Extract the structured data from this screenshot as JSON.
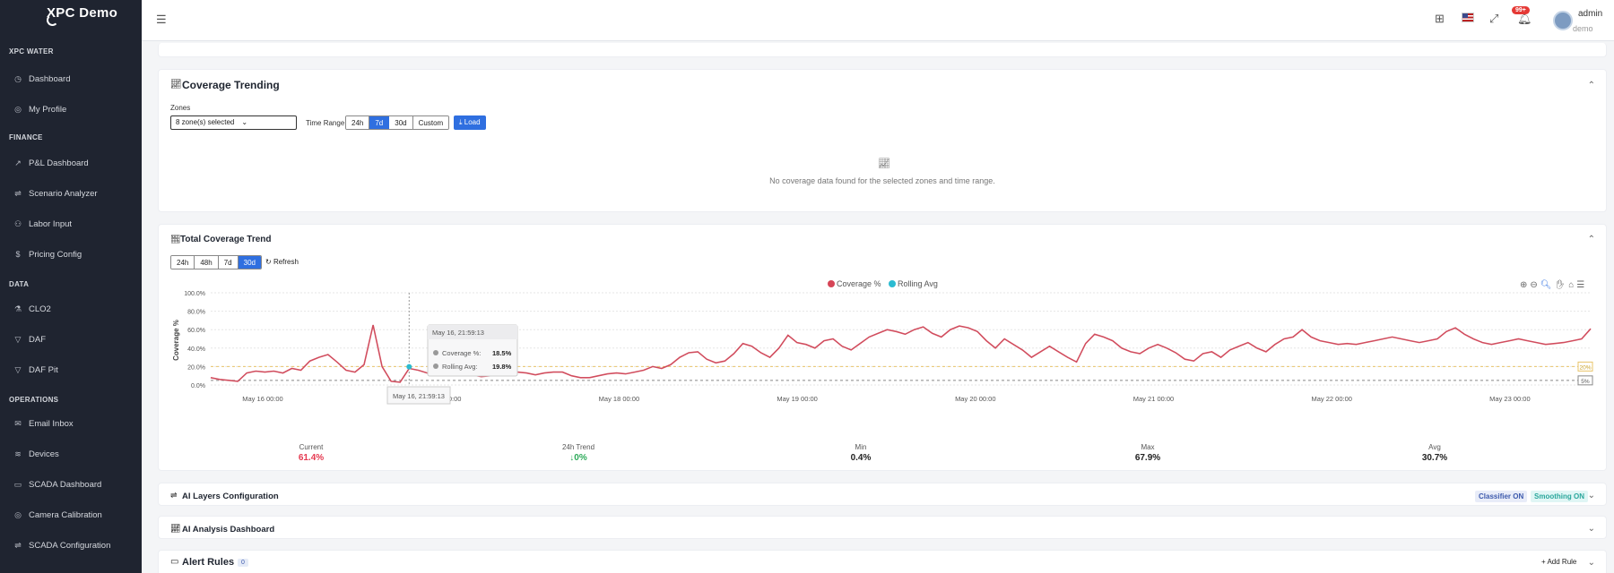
{
  "sidebar": {
    "brand": "XPC Demo",
    "sections": [
      {
        "label": "XPC WATER",
        "items": [
          {
            "label": "Dashboard",
            "icon": "gauge-icon"
          },
          {
            "label": "My Profile",
            "icon": "user-circle-icon"
          }
        ]
      },
      {
        "label": "FINANCE",
        "items": [
          {
            "label": "P&L Dashboard",
            "icon": "trend-chart-icon"
          },
          {
            "label": "Scenario Analyzer",
            "icon": "sliders-icon"
          },
          {
            "label": "Labor Input",
            "icon": "users-icon"
          },
          {
            "label": "Pricing Config",
            "icon": "dollar-icon"
          }
        ]
      },
      {
        "label": "DATA",
        "items": [
          {
            "label": "CLO2",
            "icon": "flask-icon"
          },
          {
            "label": "DAF",
            "icon": "filter-icon"
          },
          {
            "label": "DAF Pit",
            "icon": "filter-icon"
          }
        ]
      },
      {
        "label": "OPERATIONS",
        "items": [
          {
            "label": "Email Inbox",
            "icon": "mail-icon"
          },
          {
            "label": "Devices",
            "icon": "wifi-icon"
          },
          {
            "label": "SCADA Dashboard",
            "icon": "monitor-icon"
          },
          {
            "label": "Camera Calibration",
            "icon": "target-icon"
          },
          {
            "label": "SCADA Configuration",
            "icon": "sliders-icon"
          }
        ]
      }
    ]
  },
  "topbar": {
    "notifications": "99+",
    "user_name": "admin",
    "user_role": "demo"
  },
  "coverage_trending": {
    "title": "Coverage Trending",
    "zones_label": "Zones",
    "zones_value": "8 zone(s) selected",
    "time_range_label": "Time Range",
    "ranges": [
      "24h",
      "7d",
      "30d",
      "Custom"
    ],
    "active_range": "7d",
    "load_label": "Load",
    "empty_text": "No coverage data found for the selected zones and time range."
  },
  "total_trend": {
    "title": "Total Coverage Trend",
    "ranges": [
      "24h",
      "48h",
      "7d",
      "30d"
    ],
    "active_range": "30d",
    "refresh_label": "Refresh",
    "tooltip": {
      "time": "May 16, 21:59:13",
      "coverage_label": "Coverage %:",
      "coverage_value": "18.5%",
      "rolling_label": "Rolling Avg:",
      "rolling_value": "19.8%"
    },
    "crosshair_label": "May 16, 21:59:13",
    "stats": [
      {
        "label": "Current",
        "value": "61.4%",
        "color": "#e53950"
      },
      {
        "label": "24h Trend",
        "value": "↓0%",
        "color": "#2eab5a"
      },
      {
        "label": "Min",
        "value": "0.4%",
        "color": "#222222"
      },
      {
        "label": "Max",
        "value": "67.9%",
        "color": "#222222"
      },
      {
        "label": "Avg",
        "value": "30.7%",
        "color": "#222222"
      }
    ]
  },
  "chart_data": {
    "type": "line",
    "title": "",
    "ylabel": "Coverage %",
    "xlabel": "",
    "ylim": [
      0,
      100
    ],
    "y_ticks": [
      "0.0%",
      "20.0%",
      "40.0%",
      "60.0%",
      "80.0%",
      "100.0%"
    ],
    "x_ticks": [
      "May 16 00:00",
      "May 17 00:00",
      "May 18 00:00",
      "May 19 00:00",
      "May 20 00:00",
      "May 21 00:00",
      "May 22 00:00",
      "May 23 00:00"
    ],
    "legend_position": "top-center",
    "series": [
      {
        "name": "Coverage %",
        "color": "#d64556",
        "values": [
          8,
          6,
          5,
          4,
          13,
          15,
          14,
          15,
          13,
          18,
          16,
          26,
          30,
          33,
          25,
          16,
          14,
          22,
          65,
          20,
          4,
          3,
          18,
          16,
          13,
          12,
          13,
          15,
          14,
          11,
          9,
          10,
          12,
          12,
          14,
          13,
          11,
          13,
          14,
          14,
          10,
          8,
          8,
          10,
          12,
          13,
          12,
          14,
          16,
          20,
          18,
          22,
          30,
          35,
          36,
          28,
          24,
          26,
          34,
          45,
          42,
          35,
          30,
          40,
          54,
          46,
          44,
          40,
          48,
          50,
          42,
          38,
          45,
          52,
          56,
          60,
          58,
          55,
          60,
          63,
          56,
          52,
          60,
          64,
          62,
          58,
          48,
          40,
          50,
          44,
          38,
          30,
          36,
          42,
          36,
          30,
          25,
          45,
          55,
          52,
          48,
          40,
          36,
          34,
          40,
          44,
          40,
          35,
          28,
          26,
          34,
          36,
          30,
          38,
          42,
          46,
          40,
          36,
          44,
          50,
          52,
          60,
          52,
          48,
          46,
          44,
          45,
          44,
          46,
          48,
          50,
          52,
          50,
          48,
          46,
          48,
          50,
          58,
          62,
          55,
          50,
          46,
          44,
          46,
          48,
          50,
          48,
          46,
          44,
          45,
          46,
          48,
          50,
          61
        ]
      },
      {
        "name": "Rolling Avg",
        "color": "#2bbbd1",
        "values": [
          8,
          6,
          5,
          4,
          13,
          15,
          14,
          15,
          13,
          18,
          16,
          26,
          30,
          33,
          25,
          16,
          14,
          22,
          65,
          20,
          4,
          3,
          18,
          16,
          13,
          12,
          13,
          15,
          14,
          11,
          9,
          10,
          12,
          12,
          14,
          13,
          11,
          13,
          14,
          14,
          10,
          8,
          8,
          10,
          12,
          13,
          12,
          14,
          16,
          20,
          18,
          22,
          30,
          35,
          36,
          28,
          24,
          26,
          34,
          45,
          42,
          35,
          30,
          40,
          54,
          46,
          44,
          40,
          48,
          50,
          42,
          38,
          45,
          52,
          56,
          60,
          58,
          55,
          60,
          63,
          56,
          52,
          60,
          64,
          62,
          58,
          48,
          40,
          50,
          44,
          38,
          30,
          36,
          42,
          36,
          30,
          25,
          45,
          55,
          52,
          48,
          40,
          36,
          34,
          40,
          44,
          40,
          35,
          28,
          26,
          34,
          36,
          30,
          38,
          42,
          46,
          40,
          36,
          44,
          50,
          52,
          60,
          52,
          48,
          46,
          44,
          45,
          44,
          46,
          48,
          50,
          52,
          50,
          48,
          46,
          48,
          50,
          58,
          62,
          55,
          50,
          46,
          44,
          46,
          48,
          50,
          48,
          46,
          44,
          45,
          46,
          48,
          50,
          61
        ]
      }
    ],
    "thresholds": [
      {
        "label": "20%",
        "value": 20,
        "color": "#e9c46a"
      },
      {
        "label": "5%",
        "value": 5,
        "color": "#888888"
      }
    ],
    "highlight_point": {
      "series": "Rolling Avg",
      "value": 19.8
    }
  },
  "ai_layers": {
    "title": "AI Layers Configuration",
    "classifier": "Classifier ON",
    "smoothing": "Smoothing ON"
  },
  "ai_analysis": {
    "title": "AI Analysis Dashboard"
  },
  "alert_rules": {
    "title": "Alert Rules",
    "count": "0",
    "add_label": "Add Rule"
  }
}
